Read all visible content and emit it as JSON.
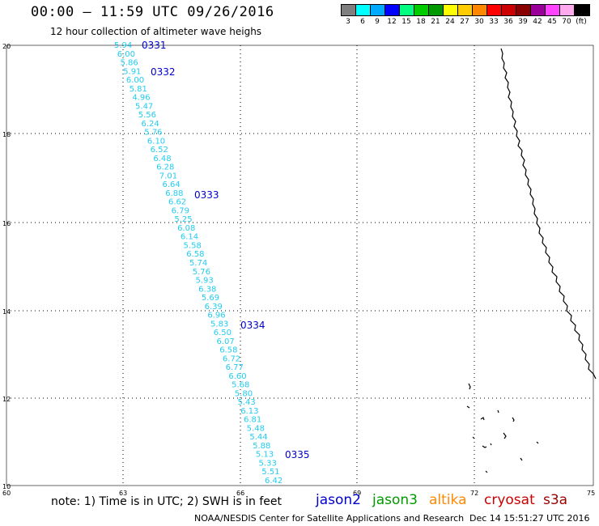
{
  "title": "00:00 – 11:59 UTC 09/26/2016",
  "subtitle": "12 hour collection of altimeter wave heighs",
  "legend": {
    "labels": [
      "3",
      "6",
      "9",
      "12",
      "15",
      "18",
      "21",
      "24",
      "27",
      "30",
      "33",
      "36",
      "39",
      "42",
      "45",
      "70",
      "(ft)"
    ],
    "colors": [
      "#7f7f7f",
      "#00ffff",
      "#00aaff",
      "#0000ff",
      "#00ff7f",
      "#00cc00",
      "#009900",
      "#ffff00",
      "#ffcc00",
      "#ff8800",
      "#ff0000",
      "#cc0000",
      "#880000",
      "#990099",
      "#ff44ff",
      "#ffaaee",
      "#000000"
    ]
  },
  "map": {
    "lon_ticks": [
      "60",
      "63",
      "66",
      "69",
      "72",
      "75"
    ],
    "lat_ticks": [
      "20",
      "18",
      "16",
      "14",
      "12",
      "10"
    ],
    "track_color": "#22ccee",
    "label_color": "#0000cc",
    "track_values": [
      "5.94",
      "6.00",
      "5.86",
      "5.91",
      "6.00",
      "5.81",
      "4.96",
      "5.47",
      "5.56",
      "6.24",
      "5.76",
      "6.10",
      "6.52",
      "6.48",
      "6.28",
      "7.01",
      "6.64",
      "6.88",
      "6.62",
      "6.79",
      "5.25",
      "6.08",
      "6.14",
      "5.58",
      "6.58",
      "5.74",
      "5.76",
      "5.93",
      "6.38",
      "5.69",
      "6.39",
      "6.96",
      "5.83",
      "6.50",
      "6.07",
      "6.58",
      "6.72",
      "6.77",
      "6.60",
      "5.68",
      "5.80",
      "5.43",
      "6.13",
      "6.81",
      "5.48",
      "5.44",
      "5.88",
      "5.13",
      "5.33",
      "5.51",
      "6.42"
    ],
    "pass_labels": [
      "0331",
      "0332",
      "0333",
      "0334",
      "0335"
    ]
  },
  "note": "note:  1) Time is in UTC;  2) SWH is in feet",
  "satellites": [
    {
      "name": "jason2",
      "color": "#0000cc"
    },
    {
      "name": "jason3",
      "color": "#009900"
    },
    {
      "name": "altika",
      "color": "#ff8800"
    },
    {
      "name": "cryosat",
      "color": "#cc0000"
    },
    {
      "name": "s3a",
      "color": "#990000"
    }
  ],
  "credit": "NOAA/NESDIS Center for Satellite Applications and Research",
  "timestamp": "Dec 14 15:51:27 UTC 2016"
}
